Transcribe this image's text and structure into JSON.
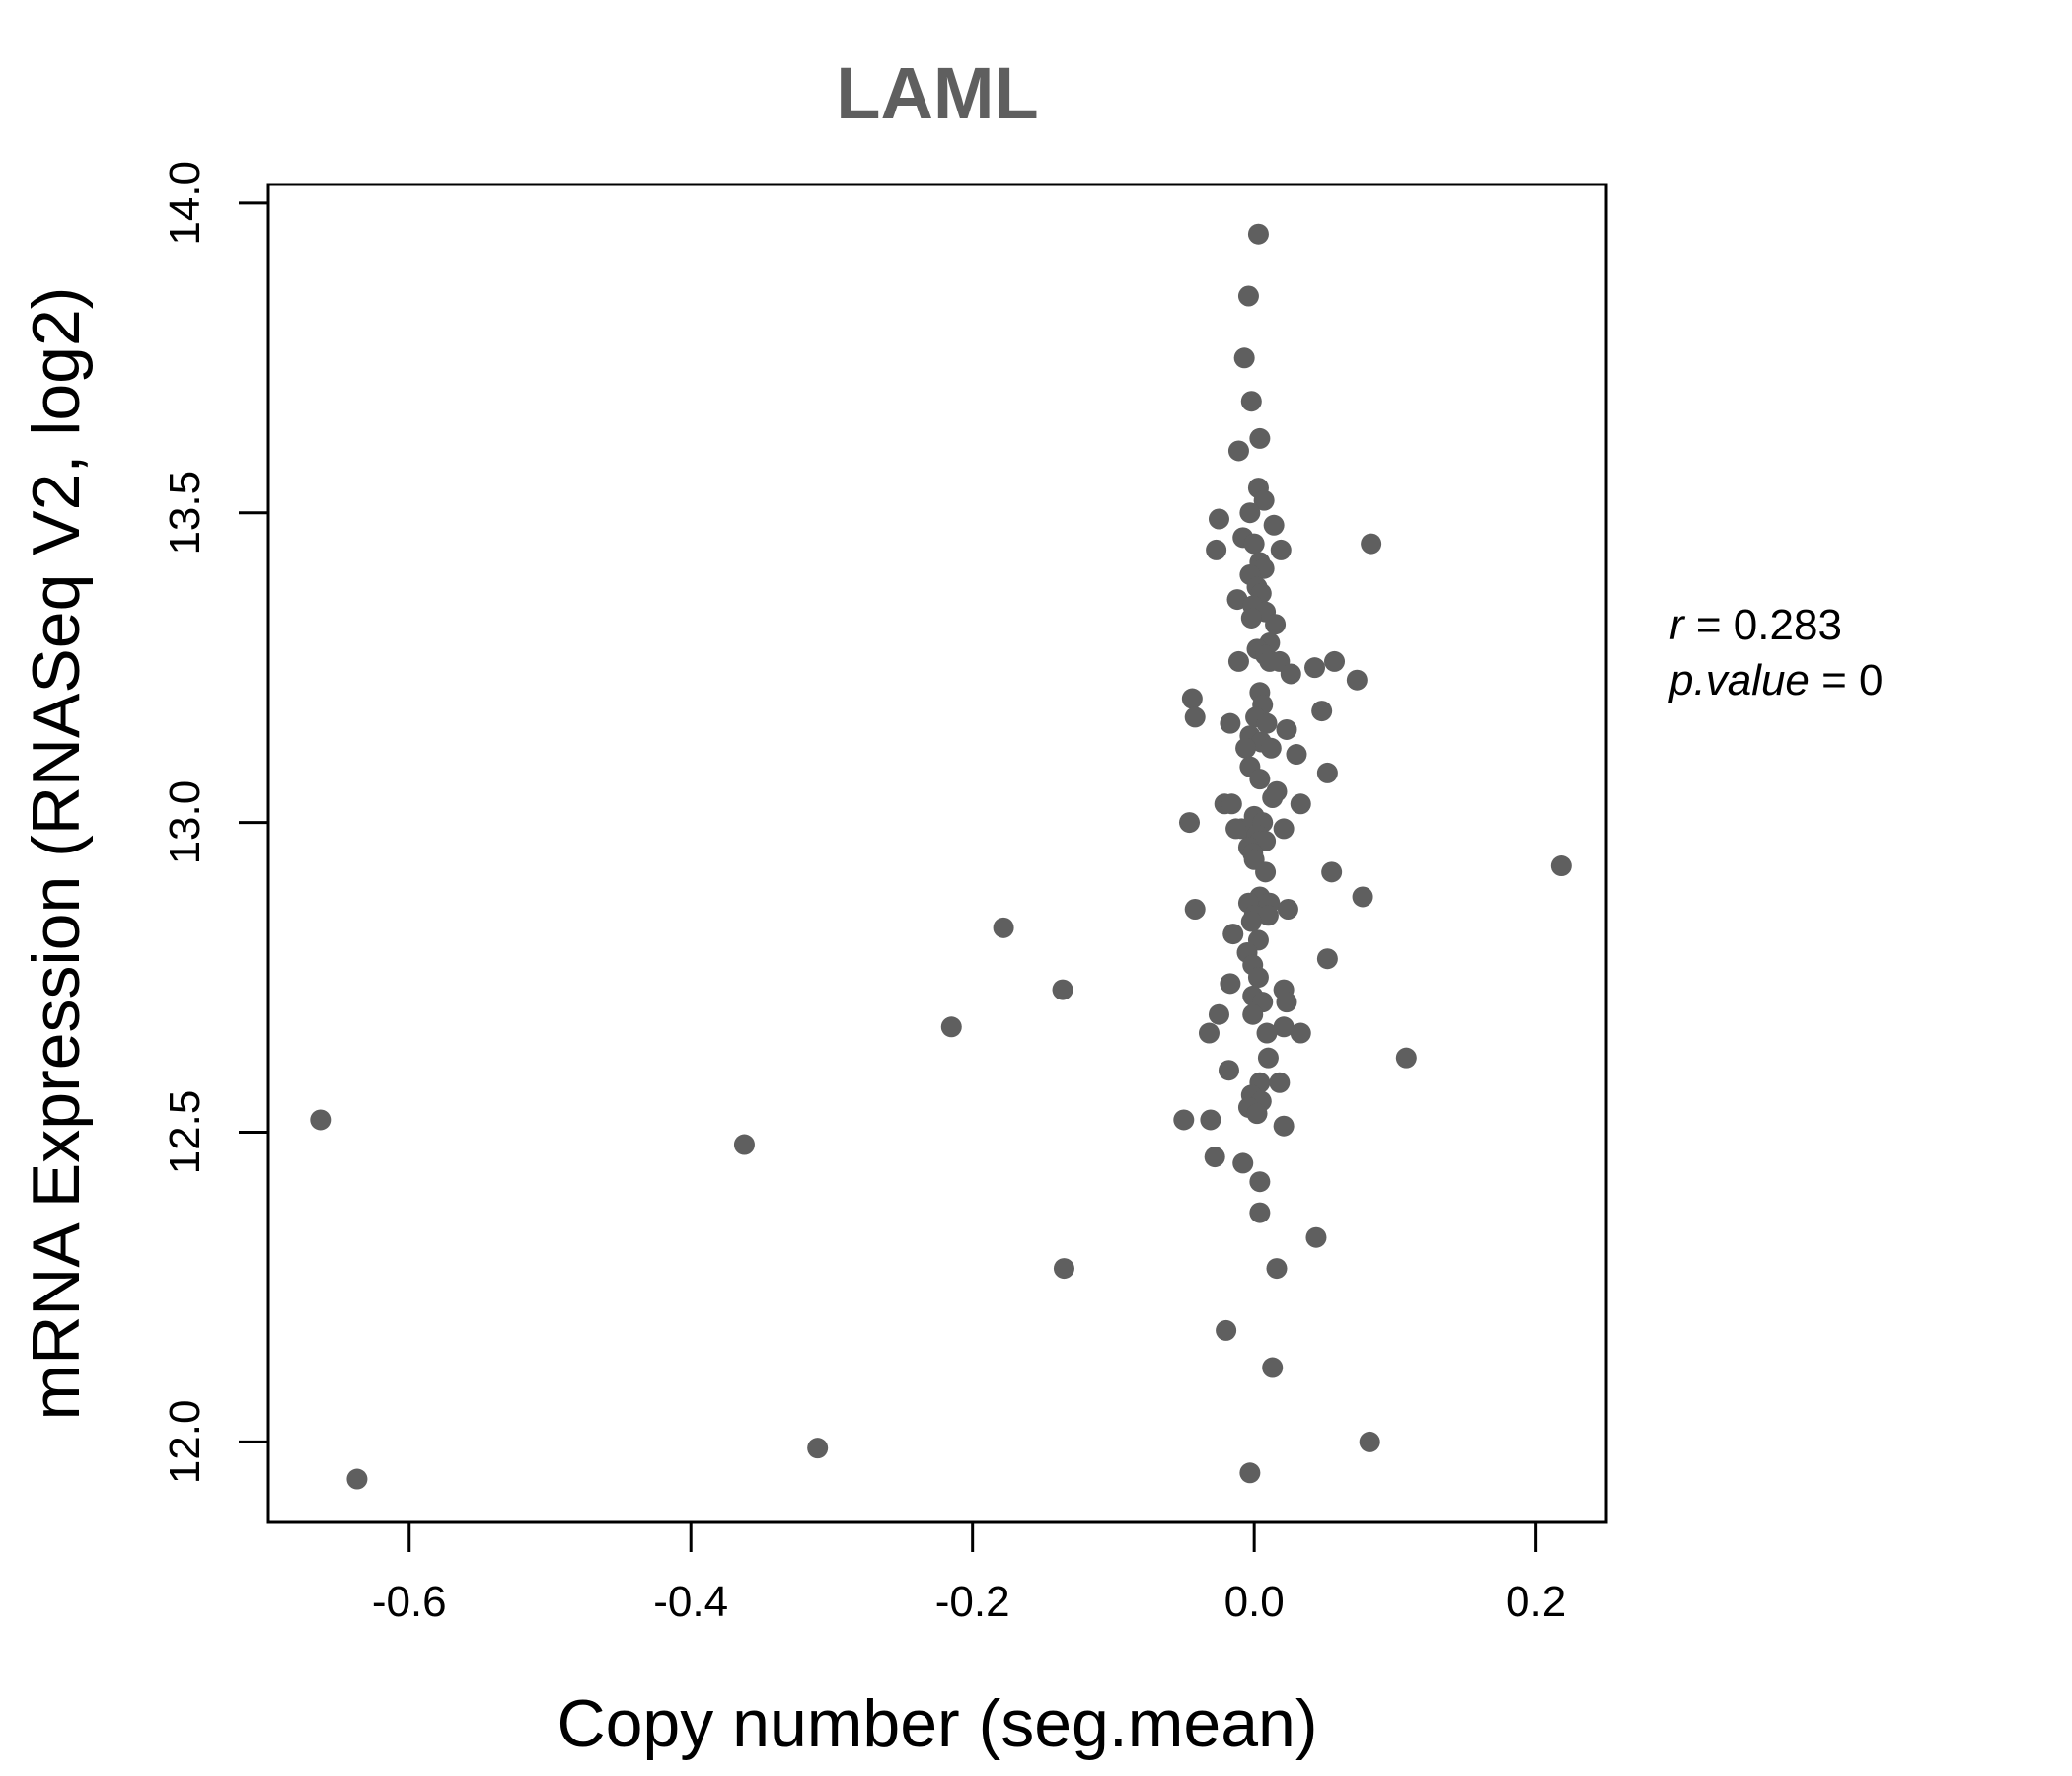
{
  "chart_data": {
    "type": "scatter",
    "title": "LAML",
    "xlabel": "Copy number (seg.mean)",
    "ylabel": "mRNA Expression (RNASeq V2, log2)",
    "xlim": [
      -0.7,
      0.25
    ],
    "ylim": [
      11.87,
      14.03
    ],
    "x_ticks": [
      -0.6,
      -0.4,
      -0.2,
      0.0,
      0.2
    ],
    "x_tick_labels": [
      "-0.6",
      "-0.4",
      "-0.2",
      "0.0",
      "0.2"
    ],
    "y_ticks": [
      12.0,
      12.5,
      13.0,
      13.5,
      14.0
    ],
    "y_tick_labels": [
      "12.0",
      "12.5",
      "13.0",
      "13.5",
      "14.0"
    ],
    "grid": false,
    "point_color": "#5f5f5f",
    "annotations": [
      {
        "var": "r",
        "op": " = ",
        "value": "0.283"
      },
      {
        "var": "p.value",
        "op": " = ",
        "value": "0"
      }
    ],
    "points": [
      [
        0.003,
        13.95
      ],
      [
        -0.004,
        13.85
      ],
      [
        -0.007,
        13.75
      ],
      [
        -0.002,
        13.68
      ],
      [
        0.004,
        13.62
      ],
      [
        -0.011,
        13.6
      ],
      [
        0.003,
        13.54
      ],
      [
        0.007,
        13.52
      ],
      [
        -0.003,
        13.5
      ],
      [
        -0.025,
        13.49
      ],
      [
        0.014,
        13.48
      ],
      [
        -0.008,
        13.46
      ],
      [
        0.0,
        13.45
      ],
      [
        0.083,
        13.45
      ],
      [
        -0.027,
        13.44
      ],
      [
        0.019,
        13.44
      ],
      [
        0.004,
        13.42
      ],
      [
        0.007,
        13.41
      ],
      [
        -0.003,
        13.4
      ],
      [
        0.002,
        13.38
      ],
      [
        0.005,
        13.37
      ],
      [
        -0.012,
        13.36
      ],
      [
        -0.001,
        13.35
      ],
      [
        0.008,
        13.34
      ],
      [
        -0.002,
        13.33
      ],
      [
        0.015,
        13.32
      ],
      [
        0.011,
        13.29
      ],
      [
        0.002,
        13.28
      ],
      [
        0.008,
        13.27
      ],
      [
        -0.011,
        13.26
      ],
      [
        0.011,
        13.26
      ],
      [
        0.018,
        13.26
      ],
      [
        0.043,
        13.25
      ],
      [
        0.057,
        13.26
      ],
      [
        0.026,
        13.24
      ],
      [
        0.073,
        13.23
      ],
      [
        0.004,
        13.21
      ],
      [
        -0.044,
        13.2
      ],
      [
        0.006,
        13.19
      ],
      [
        0.048,
        13.18
      ],
      [
        -0.042,
        13.17
      ],
      [
        0.001,
        13.17
      ],
      [
        0.009,
        13.16
      ],
      [
        -0.017,
        13.16
      ],
      [
        0.023,
        13.15
      ],
      [
        -0.003,
        13.14
      ],
      [
        0.005,
        13.13
      ],
      [
        0.012,
        13.12
      ],
      [
        -0.006,
        13.12
      ],
      [
        0.03,
        13.11
      ],
      [
        -0.003,
        13.09
      ],
      [
        0.052,
        13.08
      ],
      [
        0.004,
        13.07
      ],
      [
        0.016,
        13.05
      ],
      [
        0.013,
        13.04
      ],
      [
        -0.021,
        13.03
      ],
      [
        -0.016,
        13.03
      ],
      [
        0.033,
        13.03
      ],
      [
        -0.046,
        13.0
      ],
      [
        0.0,
        13.01
      ],
      [
        0.006,
        13.0
      ],
      [
        0.021,
        12.99
      ],
      [
        -0.009,
        12.99
      ],
      [
        -0.013,
        12.99
      ],
      [
        0.002,
        12.98
      ],
      [
        0.004,
        12.97
      ],
      [
        0.008,
        12.97
      ],
      [
        -0.004,
        12.96
      ],
      [
        -0.001,
        12.95
      ],
      [
        0.0,
        12.94
      ],
      [
        0.218,
        12.93
      ],
      [
        0.055,
        12.92
      ],
      [
        0.008,
        12.92
      ],
      [
        0.077,
        12.88
      ],
      [
        0.004,
        12.88
      ],
      [
        -0.004,
        12.87
      ],
      [
        0.011,
        12.87
      ],
      [
        -0.042,
        12.86
      ],
      [
        0.024,
        12.86
      ],
      [
        0.0,
        12.85
      ],
      [
        0.01,
        12.85
      ],
      [
        -0.002,
        12.84
      ],
      [
        -0.178,
        12.83
      ],
      [
        -0.015,
        12.82
      ],
      [
        0.003,
        12.81
      ],
      [
        -0.005,
        12.79
      ],
      [
        0.052,
        12.78
      ],
      [
        -0.001,
        12.77
      ],
      [
        0.003,
        12.75
      ],
      [
        -0.017,
        12.74
      ],
      [
        -0.136,
        12.73
      ],
      [
        0.021,
        12.73
      ],
      [
        -0.001,
        12.72
      ],
      [
        0.006,
        12.71
      ],
      [
        0.023,
        12.71
      ],
      [
        -0.025,
        12.69
      ],
      [
        -0.001,
        12.69
      ],
      [
        -0.215,
        12.67
      ],
      [
        0.021,
        12.67
      ],
      [
        -0.032,
        12.66
      ],
      [
        0.009,
        12.66
      ],
      [
        0.033,
        12.66
      ],
      [
        0.108,
        12.62
      ],
      [
        0.01,
        12.62
      ],
      [
        -0.018,
        12.6
      ],
      [
        0.004,
        12.58
      ],
      [
        0.018,
        12.58
      ],
      [
        -0.002,
        12.56
      ],
      [
        0.005,
        12.55
      ],
      [
        -0.004,
        12.54
      ],
      [
        0.002,
        12.53
      ],
      [
        -0.05,
        12.52
      ],
      [
        -0.031,
        12.52
      ],
      [
        0.021,
        12.51
      ],
      [
        -0.663,
        12.52
      ],
      [
        -0.362,
        12.48
      ],
      [
        -0.028,
        12.46
      ],
      [
        -0.008,
        12.45
      ],
      [
        0.004,
        12.42
      ],
      [
        0.004,
        12.37
      ],
      [
        0.044,
        12.33
      ],
      [
        -0.135,
        12.28
      ],
      [
        0.016,
        12.28
      ],
      [
        -0.02,
        12.18
      ],
      [
        0.013,
        12.12
      ],
      [
        0.082,
        12.0
      ],
      [
        -0.31,
        11.99
      ],
      [
        -0.637,
        11.94
      ],
      [
        -0.003,
        11.95
      ]
    ]
  }
}
